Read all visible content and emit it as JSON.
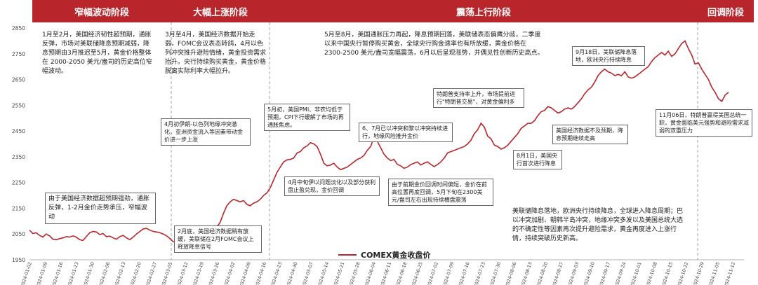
{
  "phases": [
    {
      "key": "p1",
      "label": "窄幅波动阶段"
    },
    {
      "key": "p2",
      "label": "大幅上涨阶段"
    },
    {
      "key": "p3",
      "label": "震荡上行阶段"
    },
    {
      "key": "p4",
      "label": "回调阶段"
    }
  ],
  "annotations": {
    "p1_summary": "1月至2月，美国经济韧性超预期，通胀反弹，市场对美联储降息预期减弱，降息预期由3月推迟至5月，黄金价格整体在 2000-2050 美元/盎司的历史高位窄幅波动。",
    "p2_summary": "3月至4月，美国经济数据开始走弱，FOMC会议表态转鸽，4月以色列冲突推升避险情绪，黄金投资需求抬升。央行持续购买黄金，黄金价格脱离实际利率大幅拉升。",
    "p3_summary": "5月至8月，美国通胀压力再起，降息预期回落，美联储表态偏鹰分歧，二季度以来中国央行暂停购买黄金，全球央行购金速率也有所放缓，黄金价格在 2300-2500 美元/盎司宽幅震荡，6月以后呈现涨势，并偶见性创新历史高点。",
    "mid_summary": "美联储降息落地，欧洲央行持续降息，全球进入降息周期；巴以冲突加剧、朝韩半岛冲突，地缘冲突多发以及美国总统大选的不确定性等因素再次提升避险需求，黄金再度进入上涨行情，持续突破历史新高。",
    "jan_low": "由于美国经济数据超预期强劲，通胀反弹，1-2月金价走势承压，窄幅波动",
    "feb_fomc": "2月底，美国经济数据稍有放缓，美联储在2月FOMC会议上释放降息信号",
    "apr_war": "4月初伊朗-以色列地缘冲突激化，亚洲资金流入等因素带动金价进一步上涨",
    "may_pmi": "5月初，美国PMI、非农均低于预期，CPI下行缓解了市场的再通胀焦虑。",
    "apr_cool": "4月中旬伊以问题淡化以及部分获利盘止盈兑现，金价回调",
    "jun_central": "由于前期金价回调时间偏短，金价在前高位置再度回调，5月下旬在2300美元/盎司左右出现持续横盘震荡",
    "jul_strike": "6、7月已以冲突和黎以冲突持续进行，地缘风险推升金价",
    "jul_trump": "特朗普支持率上升，市场提前进行\"特朗普交易\"，对黄金偏利多",
    "aug1": "8月1日，美国央行首次进行降息",
    "aug_data": "美国经济数据不及预期，降息预期继续走高",
    "sep18": "9月18日，美联储降息落地，欧洲央行持续降息",
    "nov6": "11月06日，特朗普赢得美国总统一职，黄金面临美元强势和避险需求减弱的双重压力"
  },
  "legend": {
    "label": "COMEX黄金收盘价"
  },
  "colors": {
    "line": "#b8262b",
    "phase_bar": "#b8262b",
    "divider": "#a2a2a2"
  },
  "chart_data": {
    "type": "line",
    "title": "",
    "xlabel": "",
    "ylabel": "",
    "ylim": [
      1950,
      2850
    ],
    "yticks": [
      1950,
      2050,
      2150,
      2250,
      2350,
      2450,
      2550,
      2650,
      2750,
      2850
    ],
    "x_tick_labels": [
      "2024-01-02",
      "2024-01-09",
      "2024-01-16",
      "2024-01-23",
      "2024-01-30",
      "2024-02-06",
      "2024-02-13",
      "2024-02-20",
      "2024-02-27",
      "2024-03-05",
      "2024-03-12",
      "2024-03-19",
      "2024-03-26",
      "2024-04-02",
      "2024-04-09",
      "2024-04-16",
      "2024-04-23",
      "2024-04-30",
      "2024-05-07",
      "2024-05-14",
      "2024-05-21",
      "2024-05-28",
      "2024-06-04",
      "2024-06-11",
      "2024-06-18",
      "2024-06-25",
      "2024-07-02",
      "2024-07-09",
      "2024-07-16",
      "2024-07-23",
      "2024-07-30",
      "2024-08-06",
      "2024-08-13",
      "2024-08-20",
      "2024-08-27",
      "2024-09-03",
      "2024-09-10",
      "2024-09-17",
      "2024-09-24",
      "2024-10-01",
      "2024-10-08",
      "2024-10-15",
      "2024-10-22",
      "2024-10-29",
      "2024-11-05",
      "2024-11-12"
    ],
    "series": [
      {
        "name": "COMEX黄金收盘价",
        "values": [
          2065,
          2052,
          2055,
          2045,
          2038,
          2050,
          2043,
          2030,
          2028,
          2032,
          2035,
          2040,
          2038,
          2043,
          2038,
          2028,
          2025,
          2040,
          2055,
          2060,
          2058,
          2048,
          2052,
          2040,
          2042,
          2035,
          2030,
          2040,
          2045,
          2035,
          2028,
          2038,
          2050,
          2060,
          2070,
          2072,
          2065,
          2060,
          2058,
          2055,
          2050,
          2043,
          2032,
          2020,
          2018,
          2028,
          2035,
          2040,
          2042,
          2050,
          2055,
          2052,
          2050,
          2045,
          2048,
          2055,
          2078,
          2095,
          2130,
          2160,
          2175,
          2185,
          2180,
          2175,
          2180,
          2165,
          2160,
          2170,
          2175,
          2185,
          2200,
          2210,
          2230,
          2260,
          2290,
          2310,
          2330,
          2338,
          2340,
          2345,
          2365,
          2370,
          2385,
          2392,
          2405,
          2400,
          2390,
          2360,
          2325,
          2315,
          2318,
          2325,
          2310,
          2300,
          2305,
          2310,
          2320,
          2330,
          2340,
          2345,
          2355,
          2375,
          2390,
          2425,
          2410,
          2385,
          2360,
          2345,
          2335,
          2340,
          2320,
          2315,
          2305,
          2310,
          2320,
          2325,
          2330,
          2318,
          2325,
          2330,
          2320,
          2312,
          2320,
          2330,
          2345,
          2365,
          2370,
          2375,
          2380,
          2385,
          2390,
          2400,
          2415,
          2440,
          2455,
          2480,
          2465,
          2430,
          2420,
          2395,
          2390,
          2380,
          2385,
          2395,
          2410,
          2425,
          2440,
          2460,
          2470,
          2480,
          2480,
          2490,
          2510,
          2525,
          2530,
          2545,
          2540,
          2530,
          2520,
          2525,
          2535,
          2540,
          2535,
          2545,
          2560,
          2575,
          2595,
          2610,
          2620,
          2640,
          2665,
          2680,
          2690,
          2680,
          2675,
          2665,
          2670,
          2665,
          2680,
          2660,
          2655,
          2660,
          2670,
          2680,
          2690,
          2700,
          2720,
          2735,
          2745,
          2755,
          2745,
          2760,
          2740,
          2750,
          2770,
          2790,
          2800,
          2770,
          2745,
          2710,
          2715,
          2690,
          2670,
          2650,
          2620,
          2600,
          2575,
          2565,
          2590,
          2600
        ]
      }
    ]
  }
}
